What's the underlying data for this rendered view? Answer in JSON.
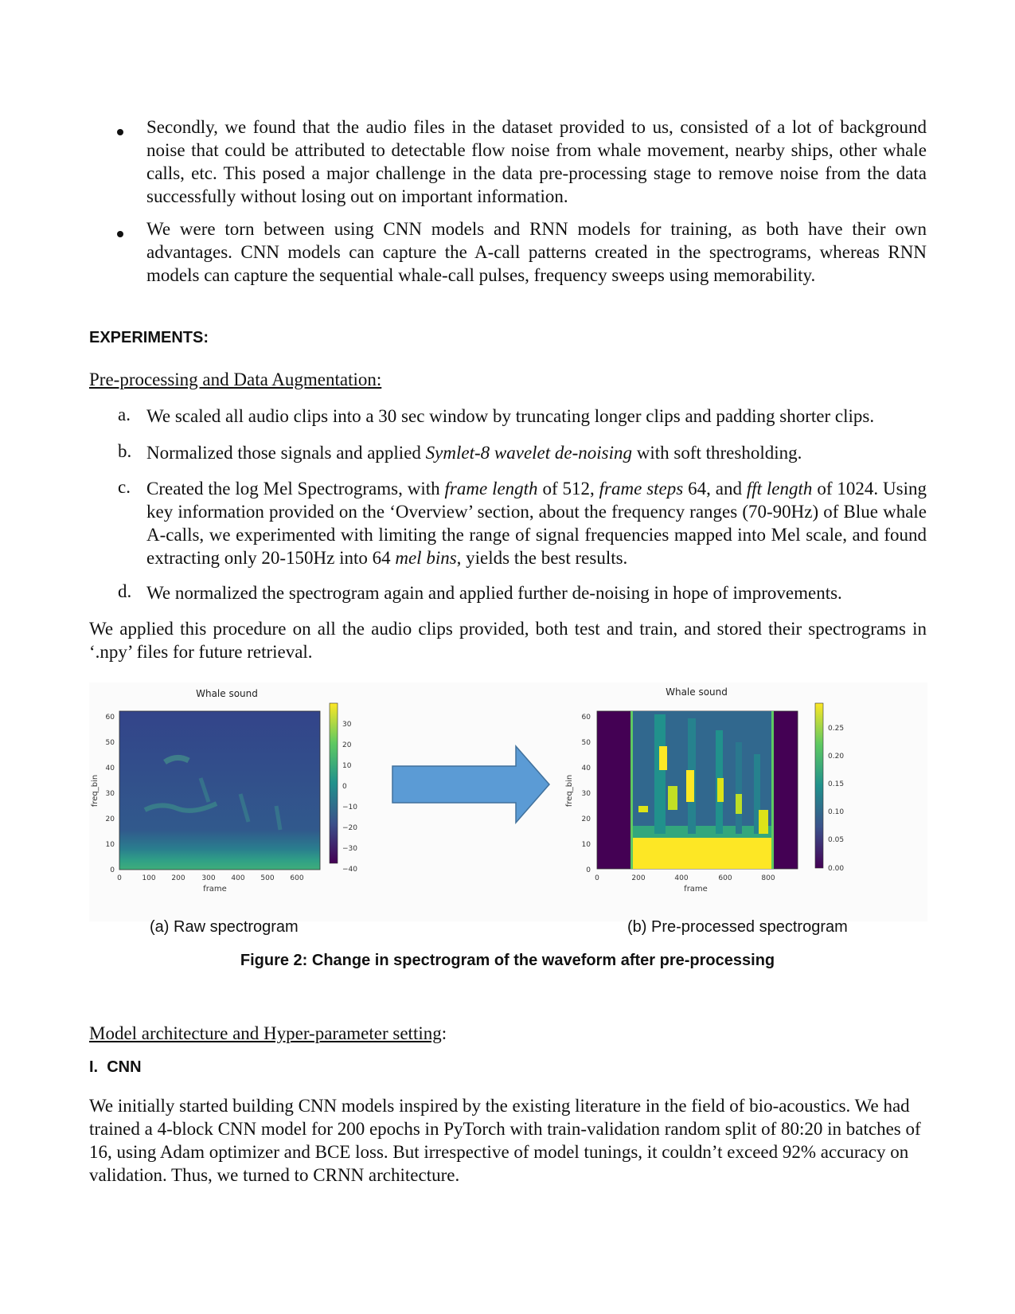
{
  "bullets": [
    "Secondly, we found that the audio files in the dataset provided to us, consisted of a lot of background noise that could be attributed to detectable flow noise from whale movement, nearby ships, other whale calls, etc. This posed a major challenge in the data pre-processing stage to remove noise from the data successfully without losing out on important information.",
    "We were torn between using CNN models and RNN models for training, as both have their own advantages. CNN models can capture the A-call patterns created in the spectrograms, whereas RNN models can capture the sequential whale-call pulses, frequency sweeps using memorability."
  ],
  "experiments_heading": "EXPERIMENTS:",
  "preproc_heading": "Pre-processing and Data Augmentation:",
  "steps": {
    "a": {
      "marker": "a.",
      "text": "We scaled all audio clips into a 30 sec window by truncating longer clips and padding shorter clips."
    },
    "b": {
      "marker": "b.",
      "pre": "Normalized those signals and applied ",
      "em": "Symlet-8 wavelet de-noising",
      "post": " with soft thresholding."
    },
    "c": {
      "marker": "c.",
      "p1": "Created the log Mel Spectrograms, with ",
      "em1": "frame length",
      "p2": " of 512, ",
      "em2": "frame steps",
      "p3": " 64, and ",
      "em3": "fft length",
      "p4": " of 1024. Using key information provided on the ‘Overview’ section, about the frequency ranges (70-90Hz) of Blue whale A-calls, we experimented with limiting the range of signal frequencies mapped into Mel scale, and found extracting only 20-150Hz into 64 ",
      "em4": "mel bins",
      "p5": ", yields the best results."
    },
    "d": {
      "marker": "d.",
      "text": "We normalized the spectrogram again and applied further de-noising in hope of improvements."
    }
  },
  "procedure_text": "We applied this procedure on all the audio clips provided, both test and train, and stored their spectrograms in ‘.npy’ files for future retrieval.",
  "figure": {
    "left_panel": {
      "title": "Whale sound",
      "xlabel": "frame",
      "ylabel": "freq_bin",
      "xticks": [
        "0",
        "100",
        "200",
        "300",
        "400",
        "500",
        "600"
      ],
      "yticks": [
        "0",
        "10",
        "20",
        "30",
        "40",
        "50",
        "60"
      ],
      "colorbar_ticks": [
        "30",
        "20",
        "10",
        "0",
        "−10",
        "−20",
        "−30",
        "−40"
      ],
      "caption": "(a) Raw spectrogram"
    },
    "right_panel": {
      "title": "Whale sound",
      "xlabel": "frame",
      "ylabel": "freq_bin",
      "xticks": [
        "0",
        "200",
        "400",
        "600",
        "800"
      ],
      "yticks": [
        "0",
        "10",
        "20",
        "30",
        "40",
        "50",
        "60"
      ],
      "colorbar_ticks": [
        "0.25",
        "0.20",
        "0.15",
        "0.10",
        "0.05",
        "0.00"
      ],
      "caption": "(b) Pre-processed spectrogram"
    },
    "arrow_color": "#5b9bd5",
    "caption": "Figure 2: Change in spectrogram of the waveform after pre-processing"
  },
  "model_heading": "Model architecture and Hyper-parameter setting",
  "model_heading_suffix": ":",
  "cnn_heading": "I.  CNN",
  "cnn_text": "We initially started building CNN models inspired by the existing literature in the field of bio-acoustics. We had trained a 4-block CNN model for 200 epochs in PyTorch with train-validation random split of 80:20 in batches of 16, using Adam optimizer and BCE loss. But irrespective of model tunings, it couldn’t exceed 92% accuracy on validation. Thus, we turned to CRNN architecture."
}
